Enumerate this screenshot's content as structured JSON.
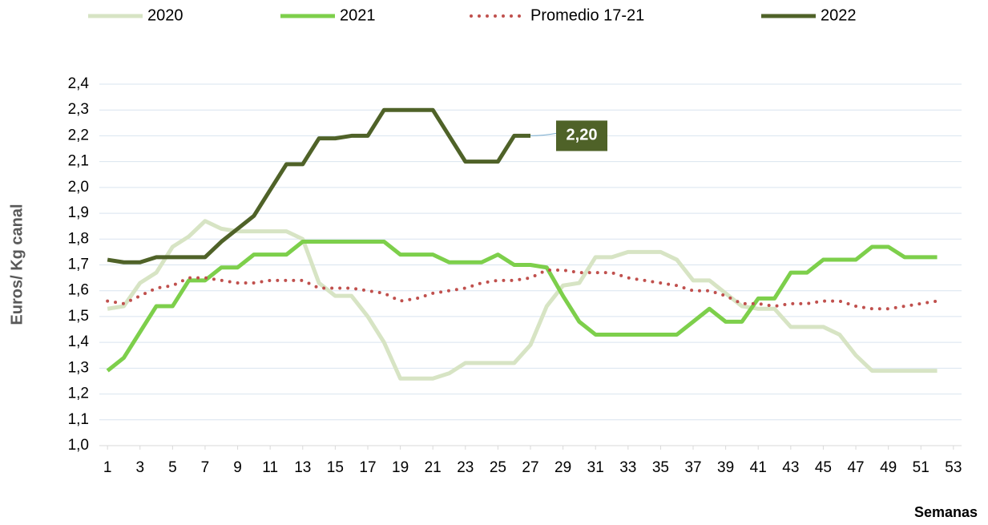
{
  "chart_data": {
    "type": "line",
    "y_label": "Euros/ Kg canal",
    "x_label": "Semanas",
    "x": [
      1,
      2,
      3,
      4,
      5,
      6,
      7,
      8,
      9,
      10,
      11,
      12,
      13,
      14,
      15,
      16,
      17,
      18,
      19,
      20,
      21,
      22,
      23,
      24,
      25,
      26,
      27,
      28,
      29,
      30,
      31,
      32,
      33,
      34,
      35,
      36,
      37,
      38,
      39,
      40,
      41,
      42,
      43,
      44,
      45,
      46,
      47,
      48,
      49,
      50,
      51,
      52
    ],
    "xlim": [
      0.5,
      53.5
    ],
    "xticks": [
      1,
      3,
      5,
      7,
      9,
      11,
      13,
      15,
      17,
      19,
      21,
      23,
      25,
      27,
      29,
      31,
      33,
      35,
      37,
      39,
      41,
      43,
      45,
      47,
      49,
      51,
      53
    ],
    "ylim": [
      1.0,
      2.4
    ],
    "yticks": [
      {
        "value": 1.0,
        "label": "1,0"
      },
      {
        "value": 1.1,
        "label": "1,1"
      },
      {
        "value": 1.2,
        "label": "1,2"
      },
      {
        "value": 1.3,
        "label": "1,3"
      },
      {
        "value": 1.4,
        "label": "1,4"
      },
      {
        "value": 1.5,
        "label": "1,5"
      },
      {
        "value": 1.6,
        "label": "1,6"
      },
      {
        "value": 1.7,
        "label": "1,7"
      },
      {
        "value": 1.8,
        "label": "1,8"
      },
      {
        "value": 1.9,
        "label": "1,9"
      },
      {
        "value": 2.0,
        "label": "2,0"
      },
      {
        "value": 2.1,
        "label": "2,1"
      },
      {
        "value": 2.2,
        "label": "2,2"
      },
      {
        "value": 2.3,
        "label": "2,3"
      },
      {
        "value": 2.4,
        "label": "2,4"
      }
    ],
    "grid": true,
    "legend": "top",
    "series": [
      {
        "name": "2020",
        "color": "#d7e4c4",
        "line_style": "solid",
        "values": [
          1.53,
          1.54,
          1.63,
          1.67,
          1.77,
          1.81,
          1.87,
          1.84,
          1.83,
          1.83,
          1.83,
          1.83,
          1.8,
          1.63,
          1.58,
          1.58,
          1.5,
          1.4,
          1.26,
          1.26,
          1.26,
          1.28,
          1.32,
          1.32,
          1.32,
          1.32,
          1.39,
          1.54,
          1.62,
          1.63,
          1.73,
          1.73,
          1.75,
          1.75,
          1.75,
          1.72,
          1.64,
          1.64,
          1.59,
          1.54,
          1.53,
          1.53,
          1.46,
          1.46,
          1.46,
          1.43,
          1.35,
          1.29,
          1.29,
          1.29,
          1.29,
          1.29
        ]
      },
      {
        "name": "2021",
        "color": "#7dcf4b",
        "line_style": "solid",
        "values": [
          1.29,
          1.34,
          1.44,
          1.54,
          1.54,
          1.64,
          1.64,
          1.69,
          1.69,
          1.74,
          1.74,
          1.74,
          1.79,
          1.79,
          1.79,
          1.79,
          1.79,
          1.79,
          1.74,
          1.74,
          1.74,
          1.71,
          1.71,
          1.71,
          1.74,
          1.7,
          1.7,
          1.69,
          1.58,
          1.48,
          1.43,
          1.43,
          1.43,
          1.43,
          1.43,
          1.43,
          1.48,
          1.53,
          1.48,
          1.48,
          1.57,
          1.57,
          1.67,
          1.67,
          1.72,
          1.72,
          1.72,
          1.77,
          1.77,
          1.73,
          1.73,
          1.73
        ]
      },
      {
        "name": "Promedio 17-21",
        "color": "#c0504d",
        "line_style": "dotted",
        "values": [
          1.56,
          1.55,
          1.58,
          1.61,
          1.62,
          1.65,
          1.65,
          1.64,
          1.63,
          1.63,
          1.64,
          1.64,
          1.64,
          1.61,
          1.61,
          1.61,
          1.6,
          1.59,
          1.56,
          1.57,
          1.59,
          1.6,
          1.61,
          1.63,
          1.64,
          1.64,
          1.65,
          1.68,
          1.68,
          1.67,
          1.67,
          1.67,
          1.65,
          1.64,
          1.63,
          1.62,
          1.6,
          1.6,
          1.58,
          1.55,
          1.55,
          1.54,
          1.55,
          1.55,
          1.56,
          1.56,
          1.54,
          1.53,
          1.53,
          1.54,
          1.55,
          1.56
        ]
      },
      {
        "name": "2022",
        "color": "#4f6228",
        "line_style": "solid",
        "values": [
          1.72,
          1.71,
          1.71,
          1.73,
          1.73,
          1.73,
          1.73,
          1.79,
          1.84,
          1.89,
          1.99,
          2.09,
          2.09,
          2.19,
          2.19,
          2.2,
          2.2,
          2.3,
          2.3,
          2.3,
          2.3,
          2.2,
          2.1,
          2.1,
          2.1,
          2.2,
          2.2,
          null,
          null,
          null,
          null,
          null,
          null,
          null,
          null,
          null,
          null,
          null,
          null,
          null,
          null,
          null,
          null,
          null,
          null,
          null,
          null,
          null,
          null,
          null,
          null,
          null
        ],
        "value_labels": [
          null,
          null,
          null,
          null,
          null,
          null,
          null,
          null,
          null,
          null,
          null,
          null,
          null,
          null,
          null,
          null,
          null,
          null,
          null,
          null,
          null,
          null,
          null,
          null,
          null,
          null,
          "2,20",
          null,
          null,
          null,
          null,
          null,
          null,
          null,
          null,
          null,
          null,
          null,
          null,
          null,
          null,
          null,
          null,
          null,
          null,
          null,
          null,
          null,
          null,
          null,
          null,
          null
        ]
      }
    ]
  }
}
